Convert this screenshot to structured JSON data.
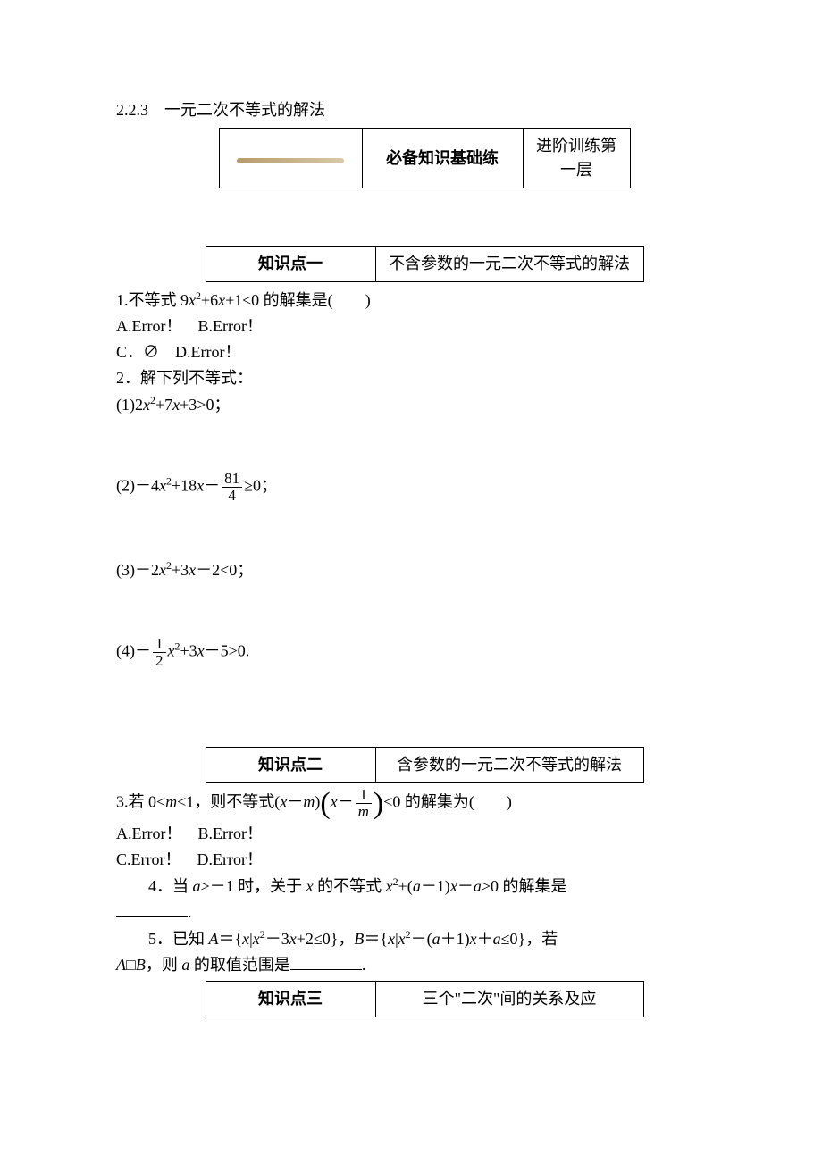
{
  "section_number": "2.2.3　一元二次不等式的解法",
  "header_table": {
    "cell2": "必备知识基础练",
    "cell3": "进阶训练第一层"
  },
  "kp1": {
    "label": "知识点一",
    "title": "不含参数的一元二次不等式的解法"
  },
  "q1": {
    "prefix": "1.不等式 9",
    "var1": "x",
    "mid1": "+6",
    "var2": "x",
    "mid2": "+1≤0 的解集是(",
    "blank": "　　",
    "suffix": ")"
  },
  "q1_choices_ab": "A.Error！　B.Error！",
  "q1_choices_cd": "C．∅　D.Error！",
  "q2_title": "2．解下列不等式：",
  "q2_1": {
    "pre": "(1)2",
    "v1": "x",
    "mid": "+7",
    "v2": "x",
    "post": "+3>0；"
  },
  "q2_2": {
    "pre": "(2)－4",
    "v1": "x",
    "mid": "+18",
    "v2": "x",
    "minus": "－",
    "num": "81",
    "den": "4",
    "post": "≥0；"
  },
  "q2_3": {
    "pre": "(3)－2",
    "v1": "x",
    "mid": "+3",
    "v2": "x",
    "post": "－2<0；"
  },
  "q2_4": {
    "pre": "(4)－",
    "num": "1",
    "den": "2",
    "v1": "x",
    "mid": "+3",
    "v2": "x",
    "post": "－5>0."
  },
  "kp2": {
    "label": "知识点二",
    "title": "含参数的一元二次不等式的解法"
  },
  "q3": {
    "pre": "3.若 0<",
    "m1": "m",
    "mid1": "<1，则不等式(",
    "x1": "x",
    "mid2": "－",
    "m2": "m",
    "mid3": ")",
    "inparen_pre": "x",
    "inparen_minus": "－",
    "num": "1",
    "den": "m",
    "post": "<0 的解集为(",
    "blank": "　　",
    "close": ")"
  },
  "q3_choices_ab": "A.Error！　B.Error！",
  "q3_choices_cd": "C.Error！　D.Error！",
  "q4": {
    "pre": "　　4．当 ",
    "a1": "a",
    "mid1": ">－1 时，关于 ",
    "x1": "x",
    "mid2": " 的不等式 ",
    "x2": "x",
    "mid3": "+(",
    "a2": "a",
    "mid4": "－1)",
    "x3": "x",
    "mid5": "－",
    "a3": "a",
    "mid6": ">0 的解集是",
    "period": "."
  },
  "q5": {
    "pre": "　　5．已知 ",
    "A": "A",
    "mid1": "＝{",
    "x1": "x",
    "mid2": "|",
    "x2": "x",
    "mid3": "－3",
    "x3": "x",
    "mid4": "+2≤0}，",
    "B": "B",
    "mid5": "＝{",
    "x4": "x",
    "mid6": "|",
    "x5": "x",
    "mid7": "－(",
    "a1": "a",
    "mid8": "＋1)",
    "x6": "x",
    "mid9": "＋",
    "a2": "a",
    "mid10": "≤0}，若",
    "line2_pre": "",
    "A2": "A",
    "sub": "□",
    "B2": "B",
    "line2_mid": "，则 ",
    "a3": "a",
    "line2_post": " 的取值范围是",
    "period": "."
  },
  "kp3": {
    "label": "知识点三",
    "title": "三个\"二次\"间的关系及应"
  }
}
